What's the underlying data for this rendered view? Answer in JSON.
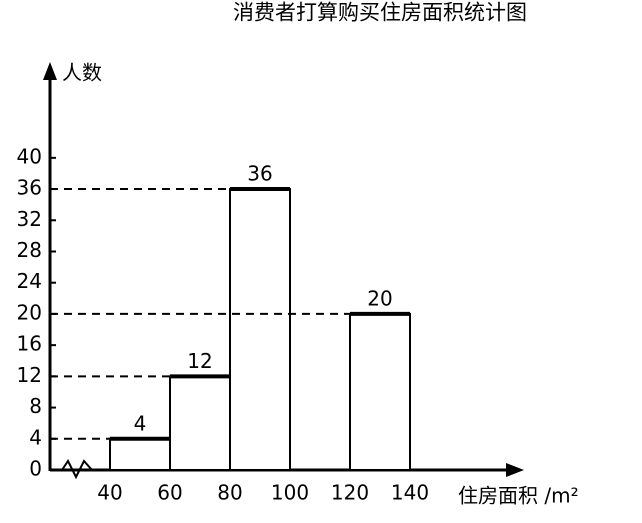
{
  "chart_data": {
    "type": "histogram",
    "title": "消费者打算购买住房面积统计图",
    "y_label": "人数",
    "x_label": "住房面积 /m²",
    "bins": [
      40,
      60,
      80,
      100,
      120,
      140
    ],
    "values": [
      4,
      12,
      36,
      null,
      20
    ],
    "color": "#ffffff",
    "edge_color": "#000000",
    "xlim": [
      20,
      176
    ],
    "xticks": [
      40,
      60,
      80,
      100,
      120,
      140
    ],
    "ylim": [
      0,
      51
    ],
    "yticks": [
      0,
      4,
      8,
      12,
      16,
      20,
      24,
      28,
      32,
      36,
      40
    ],
    "grid": false
  }
}
